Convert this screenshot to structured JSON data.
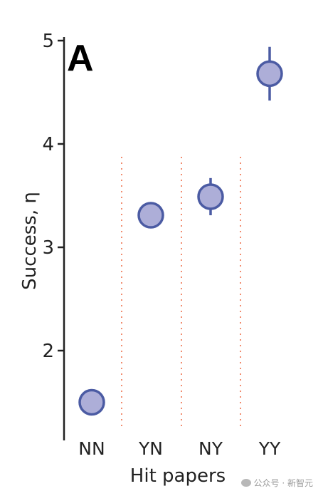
{
  "chart_data": {
    "type": "scatter",
    "panel_label": "A",
    "xlabel": "Hit papers",
    "ylabel": "Success, η",
    "categories": [
      "NN",
      "YN",
      "NY",
      "YY"
    ],
    "series": [
      {
        "values": [
          1.5,
          3.31,
          3.49,
          4.68
        ],
        "err_low": [
          1.5,
          3.31,
          3.31,
          4.42
        ],
        "err_high": [
          1.5,
          3.31,
          3.67,
          4.94
        ]
      }
    ],
    "ylim": [
      1.2,
      5.05
    ],
    "yticks": [
      2,
      3,
      4,
      5
    ],
    "separators": "dotted vertical lines between categories",
    "grid": false,
    "legend": "none",
    "colors": {
      "marker_fill": "#adaed8",
      "marker_edge": "#4b5ba3",
      "separator": "#f08060",
      "axis": "#222222"
    }
  },
  "watermark": "公众号 · 新智元"
}
